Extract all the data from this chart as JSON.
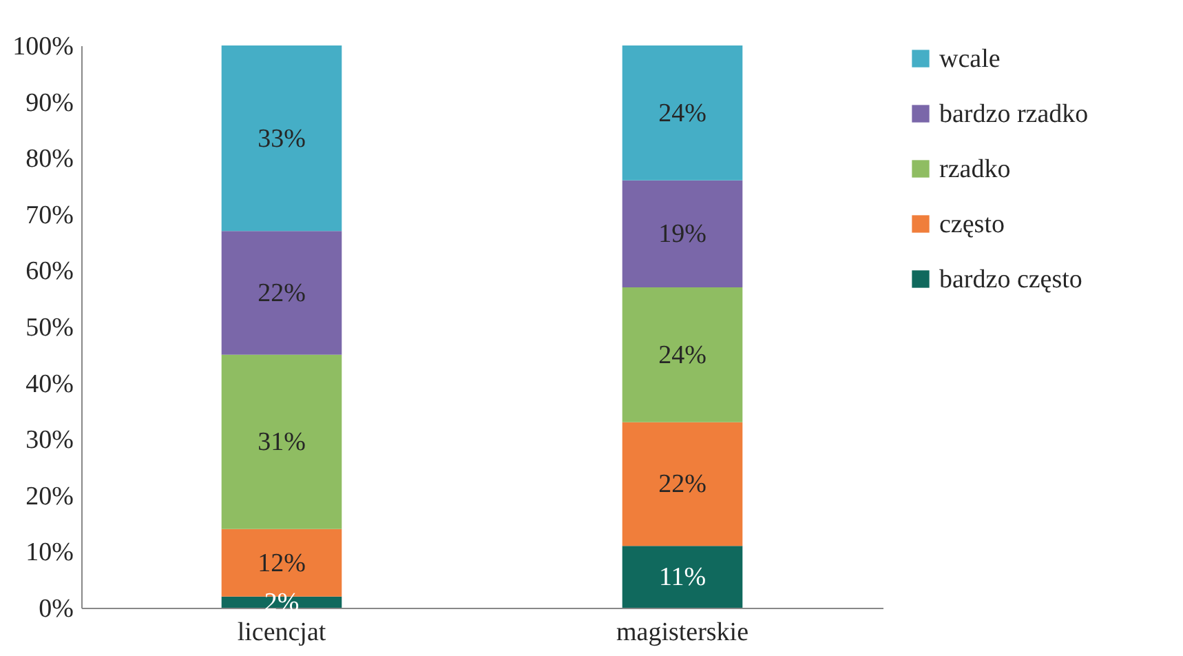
{
  "chart_data": {
    "type": "bar",
    "stacked": true,
    "categories": [
      "licencjat",
      "magisterskie"
    ],
    "series": [
      {
        "name": "bardzo często",
        "color": "#10695d",
        "values": [
          2,
          11
        ],
        "value_labels": [
          "2%",
          "11%"
        ]
      },
      {
        "name": "często",
        "color": "#f07e3b",
        "values": [
          12,
          22
        ],
        "value_labels": [
          "12%",
          "22%"
        ]
      },
      {
        "name": "rzadko",
        "color": "#8fbd62",
        "values": [
          31,
          24
        ],
        "value_labels": [
          "31%",
          "24%"
        ]
      },
      {
        "name": "bardzo rzadko",
        "color": "#7a67a9",
        "values": [
          22,
          19
        ],
        "value_labels": [
          "22%",
          "19%"
        ]
      },
      {
        "name": "wcale",
        "color": "#45aec6",
        "values": [
          33,
          24
        ],
        "value_labels": [
          "33%",
          "24%"
        ]
      }
    ],
    "ylim": [
      0,
      100
    ],
    "yticks": [
      {
        "value": 0,
        "label": "0%"
      },
      {
        "value": 10,
        "label": "10%"
      },
      {
        "value": 20,
        "label": "20%"
      },
      {
        "value": 30,
        "label": "30%"
      },
      {
        "value": 40,
        "label": "40%"
      },
      {
        "value": 50,
        "label": "50%"
      },
      {
        "value": 60,
        "label": "60%"
      },
      {
        "value": 70,
        "label": "70%"
      },
      {
        "value": 80,
        "label": "80%"
      },
      {
        "value": 90,
        "label": "90%"
      },
      {
        "value": 100,
        "label": "100%"
      }
    ],
    "grid": false,
    "legend": "right"
  }
}
